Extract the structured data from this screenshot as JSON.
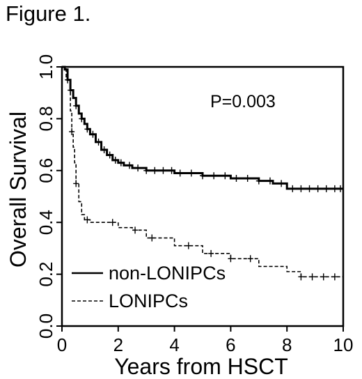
{
  "figure_label": "Figure 1.",
  "chart_data": {
    "type": "line",
    "title": "",
    "xlabel": "Years from HSCT",
    "ylabel": "Overall Survival",
    "xlim": [
      0,
      10
    ],
    "ylim": [
      0,
      1
    ],
    "x_ticks": [
      0,
      2,
      4,
      6,
      8,
      10
    ],
    "x_tick_labels": [
      "0",
      "2",
      "4",
      "6",
      "8",
      "10"
    ],
    "y_ticks": [
      0,
      0.2,
      0.4,
      0.6,
      0.8,
      1.0
    ],
    "y_tick_labels": [
      "0.0",
      "0.2",
      "0.4",
      "0.6",
      "0.8",
      "1.0"
    ],
    "grid": false,
    "legend_position": "bottom-left",
    "annotation": "P=0.003",
    "series": [
      {
        "name": "non-LONIPCs",
        "line_style": "solid",
        "color": "#000000",
        "x": [
          0,
          0.1,
          0.2,
          0.3,
          0.4,
          0.5,
          0.6,
          0.7,
          0.8,
          0.9,
          1.0,
          1.2,
          1.4,
          1.6,
          1.8,
          2.0,
          2.2,
          2.5,
          3.0,
          3.5,
          4.0,
          5.0,
          6.0,
          7.0,
          7.5,
          8.0,
          8.5,
          9.0,
          10.0
        ],
        "y": [
          1.0,
          0.99,
          0.95,
          0.91,
          0.88,
          0.85,
          0.82,
          0.8,
          0.78,
          0.76,
          0.74,
          0.71,
          0.68,
          0.66,
          0.64,
          0.63,
          0.62,
          0.61,
          0.6,
          0.6,
          0.59,
          0.58,
          0.57,
          0.56,
          0.55,
          0.53,
          0.53,
          0.53,
          0.53
        ]
      },
      {
        "name": "LONIPCs",
        "line_style": "dashed",
        "color": "#000000",
        "x": [
          0,
          0.15,
          0.3,
          0.35,
          0.4,
          0.45,
          0.5,
          0.6,
          0.7,
          0.8,
          1.0,
          1.5,
          2.0,
          2.5,
          3.0,
          4.0,
          5.0,
          6.0,
          7.0,
          7.5,
          8.0,
          8.5,
          10.0
        ],
        "y": [
          1.0,
          0.95,
          0.83,
          0.75,
          0.69,
          0.63,
          0.55,
          0.48,
          0.43,
          0.41,
          0.4,
          0.4,
          0.38,
          0.37,
          0.34,
          0.31,
          0.28,
          0.26,
          0.23,
          0.23,
          0.21,
          0.19,
          0.19
        ]
      }
    ],
    "censor_marks": [
      {
        "series": "non-LONIPCs",
        "x": [
          0.3,
          0.5,
          0.7,
          0.9,
          1.1,
          1.3,
          1.5,
          1.7,
          1.9,
          2.1,
          2.4,
          2.7,
          3.0,
          3.3,
          3.6,
          3.9,
          4.2,
          4.6,
          5.0,
          5.4,
          5.8,
          6.2,
          6.6,
          7.0,
          7.4,
          7.8,
          8.2,
          8.5,
          8.8,
          9.1,
          9.4,
          9.7,
          9.9
        ]
      },
      {
        "series": "LONIPCs",
        "x": [
          0.2,
          0.35,
          0.5,
          0.9,
          1.8,
          2.6,
          3.2,
          4.5,
          5.3,
          6.0,
          6.7,
          8.5,
          8.9,
          9.3,
          9.7
        ]
      }
    ]
  }
}
